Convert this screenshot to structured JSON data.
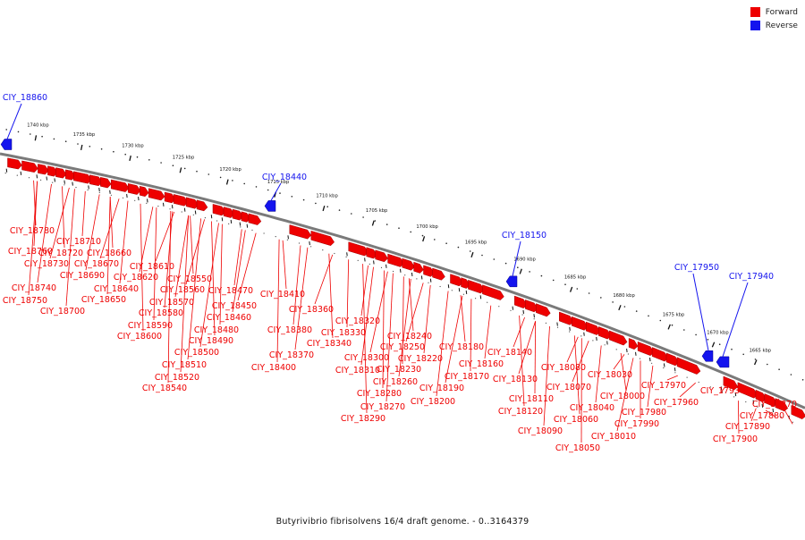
{
  "legend": {
    "forward_label": "Forward",
    "reverse_label": "Reverse"
  },
  "colors": {
    "forward": "#ee0000",
    "reverse": "#1414ee",
    "backbone": "#7a7a7a"
  },
  "caption": "Butyrivibrio fibrisolvens 16/4 draft genome. - 0..3164379",
  "axis": {
    "ticks": [
      "1665 kbp",
      "1670 kbp",
      "1675 kbp",
      "1680 kbp",
      "1685 kbp",
      "1690 kbp",
      "1695 kbp",
      "1700 kbp",
      "1705 kbp",
      "1710 kbp",
      "1715 kbp",
      "1720 kbp",
      "1725 kbp",
      "1730 kbp",
      "1735 kbp",
      "1740 kbp"
    ]
  },
  "reverse_genes": [
    "CIY_18860",
    "CIY_18440",
    "CIY_18150",
    "CIY_17950",
    "CIY_17940"
  ],
  "forward_genes": [
    "CIY_18780",
    "CIY_18760",
    "CIY_18750",
    "CIY_18740",
    "CIY_18730",
    "CIY_18720",
    "CIY_18710",
    "CIY_18700",
    "CIY_18690",
    "CIY_18670",
    "CIY_18660",
    "CIY_18650",
    "CIY_18640",
    "CIY_18620",
    "CIY_18610",
    "CIY_18600",
    "CIY_18590",
    "CIY_18580",
    "CIY_18570",
    "CIY_18560",
    "CIY_18550",
    "CIY_18540",
    "CIY_18520",
    "CIY_18510",
    "CIY_18500",
    "CIY_18490",
    "CIY_18480",
    "CIY_18470",
    "CIY_18460",
    "CIY_18450",
    "CIY_18410",
    "CIY_18400",
    "CIY_18380",
    "CIY_18370",
    "CIY_18360",
    "CIY_18340",
    "CIY_18330",
    "CIY_18320",
    "CIY_18310",
    "CIY_18300",
    "CIY_18290",
    "CIY_18280",
    "CIY_18270",
    "CIY_18260",
    "CIY_18250",
    "CIY_18240",
    "CIY_18230",
    "CIY_18220",
    "CIY_18200",
    "CIY_18190",
    "CIY_18180",
    "CIY_18170",
    "CIY_18160",
    "CIY_18140",
    "CIY_18130",
    "CIY_18120",
    "CIY_18110",
    "CIY_18090",
    "CIY_18080",
    "CIY_18070",
    "CIY_18060",
    "CIY_18050",
    "CIY_18040",
    "CIY_18030",
    "CIY_18010",
    "CIY_18000",
    "CIY_17990",
    "CIY_17980",
    "CIY_17970",
    "CIY_17960",
    "CIY_17930",
    "CIY_17900",
    "CIY_17890",
    "CIY_17880",
    "CIY_17870"
  ]
}
